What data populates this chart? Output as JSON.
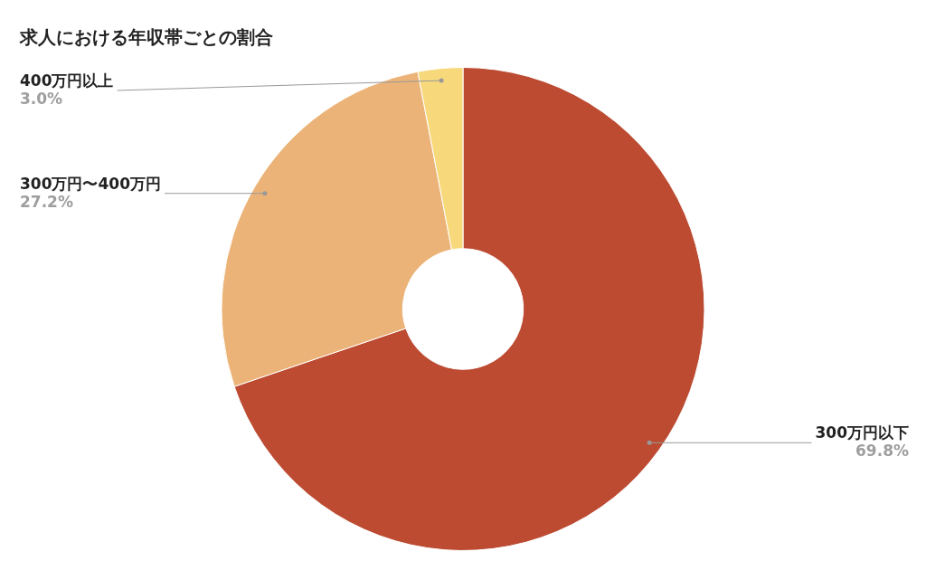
{
  "chart_data": {
    "type": "donut",
    "title": "求人における年収帯ごとの割合",
    "categories": [
      "300万円以下",
      "300万円〜400万円",
      "400万円以上"
    ],
    "values": [
      69.8,
      27.2,
      3.0
    ],
    "colors": [
      "#bc4b32",
      "#ebb378",
      "#f7d97c"
    ],
    "value_labels": [
      "69.8%",
      "27.2%",
      "3.0%"
    ],
    "legend": false
  }
}
